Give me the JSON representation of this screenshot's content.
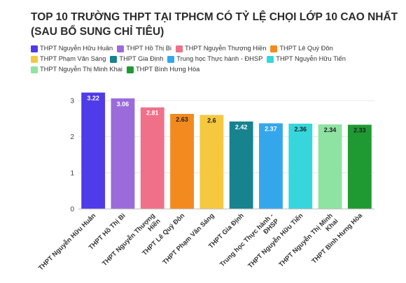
{
  "chart_data": {
    "type": "bar",
    "title": "TOP 10 TRƯỜNG THPT TẠI TPHCM CÓ TỶ LỆ CHỌI LỚP 10 CAO NHẤT (SAU BỔ SUNG CHỈ TIÊU)",
    "categories": [
      "THPT Nguyễn Hữu Huân",
      "THPT Hồ Thị Bi",
      "THPT Nguyễn Thượng Hiền",
      "THPT Lê Quý Đôn",
      "THPT Phạm Văn Sáng",
      "THPT Gia Định",
      "Trung học Thực hành - ĐHSP",
      "THPT Nguyễn Hữu Tiến",
      "THPT Nguyễn Thị Minh Khai",
      "THPT Bình Hưng Hòa"
    ],
    "tick_labels": [
      [
        "THPT Nguyễn Hữu Huân"
      ],
      [
        "THPT Hồ Thị Bi"
      ],
      [
        "THPT Nguyễn Thượng",
        "Hiền"
      ],
      [
        "THPT Lê Quý Đôn"
      ],
      [
        "THPT Phạm Văn Sáng"
      ],
      [
        "THPT Gia Định"
      ],
      [
        "Trung học Thực hành -",
        "ĐHSP"
      ],
      [
        "THPT Nguyễn Hữu Tiến"
      ],
      [
        "THPT Nguyễn Thị Minh",
        "Khai"
      ],
      [
        "THPT Bình Hưng Hòa"
      ]
    ],
    "values": [
      3.22,
      3.06,
      2.81,
      2.63,
      2.6,
      2.42,
      2.37,
      2.36,
      2.34,
      2.33
    ],
    "data_labels": [
      "3.22",
      "3.06",
      "2.81",
      "2.63",
      "2.6",
      "2.42",
      "2.37",
      "2.36",
      "2.34",
      "2.33"
    ],
    "colors": [
      "#4f3be8",
      "#9b6bdc",
      "#f0708a",
      "#f38a1f",
      "#f5c840",
      "#16838f",
      "#34a7ec",
      "#36d6dc",
      "#8fe3a2",
      "#1f9a33"
    ],
    "label_colors": [
      "#ffffff",
      "#ffffff",
      "#ffffff",
      "#222222",
      "#222222",
      "#ffffff",
      "#ffffff",
      "#222222",
      "#222222",
      "#222222"
    ],
    "yticks": [
      0,
      1,
      2,
      3
    ],
    "ylim": [
      0,
      3.5
    ],
    "xlabel": "",
    "ylabel": "",
    "legend_position": "top",
    "grid": true
  }
}
